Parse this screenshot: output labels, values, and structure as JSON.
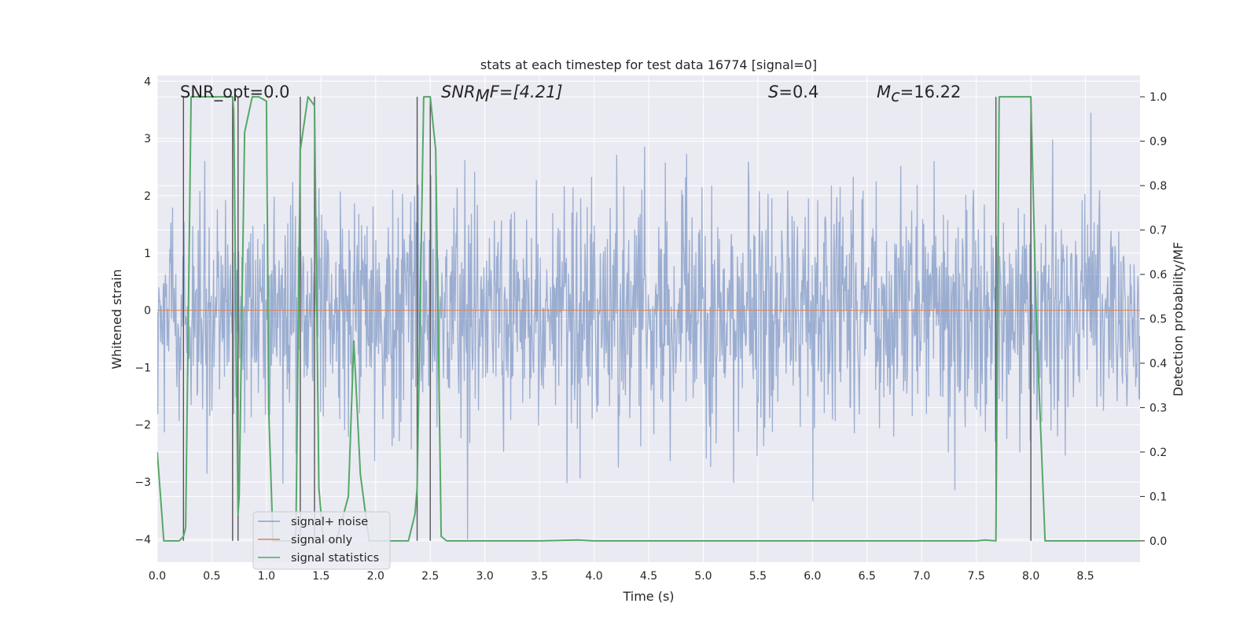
{
  "chart_data": {
    "type": "line",
    "title": "stats at each timestep for test data 16774 [signal=0]",
    "xlabel": "Time (s)",
    "ylabel": "Whitened strain",
    "y2label": "Detection probability/MF",
    "xlim": [
      0.0,
      9.0
    ],
    "ylim": [
      -4.4,
      4.1
    ],
    "y2lim": [
      -0.048,
      1.048
    ],
    "x_ticks": [
      0.0,
      0.5,
      1.0,
      1.5,
      2.0,
      2.5,
      3.0,
      3.5,
      4.0,
      4.5,
      5.0,
      5.5,
      6.0,
      6.5,
      7.0,
      7.5,
      8.0,
      8.5
    ],
    "x_tick_labels": [
      "0.0",
      "0.5",
      "1.0",
      "1.5",
      "2.0",
      "2.5",
      "3.0",
      "3.5",
      "4.0",
      "4.5",
      "5.0",
      "5.5",
      "6.0",
      "6.5",
      "7.0",
      "7.5",
      "8.0",
      "8.5"
    ],
    "y_ticks": [
      4,
      3,
      2,
      1,
      0,
      -1,
      -2,
      -3,
      -4
    ],
    "y_tick_labels": [
      "4",
      "3",
      "2",
      "1",
      "0",
      "−1",
      "−2",
      "−3",
      "−4"
    ],
    "y2_ticks": [
      1.0,
      0.9,
      0.8,
      0.7,
      0.6,
      0.5,
      0.4,
      0.3,
      0.2,
      0.1,
      0.0
    ],
    "y2_tick_labels": [
      "1.0",
      "0.9",
      "0.8",
      "0.7",
      "0.6",
      "0.5",
      "0.4",
      "0.3",
      "0.2",
      "0.1",
      "0.0"
    ],
    "grid": true,
    "legend_position": "lower-left",
    "colors": {
      "background": "#eaeaf2",
      "grid": "#ffffff",
      "noise": "#4c72b0",
      "signal": "#dd8452",
      "stats": "#55a868",
      "markers": "#555555"
    },
    "series": [
      {
        "name": "signal+ noise",
        "axis": "left",
        "description_kind": "dense whitened noise trace, roughly gaussian with sigma ~1",
        "noise_seed": 16774,
        "sample_count": 1800,
        "sigma": 1.0,
        "clip": [
          -4.0,
          3.9
        ]
      },
      {
        "name": "signal only",
        "axis": "left",
        "x": [
          0.0,
          9.0
        ],
        "y": [
          0.0,
          0.0
        ]
      },
      {
        "name": "signal statistics",
        "axis": "right",
        "x": [
          0.0,
          0.06,
          0.2,
          0.24,
          0.26,
          0.31,
          0.69,
          0.7,
          0.74,
          0.75,
          0.8,
          0.87,
          0.93,
          1.0,
          1.02,
          1.06,
          1.1,
          1.15,
          1.25,
          1.27,
          1.31,
          1.38,
          1.44,
          1.48,
          1.52,
          1.58,
          1.64,
          1.75,
          1.8,
          1.86,
          1.94,
          2.3,
          2.36,
          2.38,
          2.44,
          2.5,
          2.55,
          2.6,
          2.65,
          3.0,
          3.5,
          3.85,
          4.0,
          4.5,
          5.0,
          5.5,
          6.0,
          6.5,
          7.0,
          7.5,
          7.58,
          7.68,
          7.71,
          7.8,
          8.0,
          8.05,
          8.13,
          8.5,
          9.0
        ],
        "y": [
          0.2,
          0.0,
          0.0,
          0.01,
          0.03,
          1.0,
          1.0,
          0.97,
          0.06,
          0.1,
          0.92,
          1.0,
          1.0,
          0.99,
          0.3,
          0.0,
          0.0,
          0.0,
          0.0,
          0.02,
          0.88,
          1.0,
          0.98,
          0.12,
          0.0,
          0.0,
          0.0,
          0.1,
          0.45,
          0.15,
          0.0,
          0.0,
          0.06,
          0.12,
          1.0,
          1.0,
          0.88,
          0.01,
          0.0,
          0.0,
          0.0,
          0.002,
          0.0,
          0.0,
          0.0,
          0.0,
          0.0,
          0.0,
          0.0,
          0.0,
          0.002,
          0.0,
          1.0,
          1.0,
          1.0,
          0.5,
          0.0,
          0.0,
          0.0
        ]
      }
    ],
    "vertical_markers": [
      0.24,
      0.69,
      0.74,
      1.31,
      1.44,
      2.38,
      2.5,
      7.68,
      8.0
    ],
    "annotations": [
      {
        "id": "snr-opt",
        "text": "SNR_opt=0.0"
      },
      {
        "id": "snr-mf",
        "base": "SNR",
        "sub": "M",
        "rest": "F=[4.21]"
      },
      {
        "id": "s",
        "var": "S",
        "rest": "=0.4"
      },
      {
        "id": "mc",
        "base": "M",
        "sub": "c",
        "rest": "=16.22"
      }
    ],
    "legend": [
      {
        "label": "signal+ noise",
        "color_key": "noise"
      },
      {
        "label": "signal only",
        "color_key": "signal"
      },
      {
        "label": "signal statistics",
        "color_key": "stats"
      }
    ]
  }
}
